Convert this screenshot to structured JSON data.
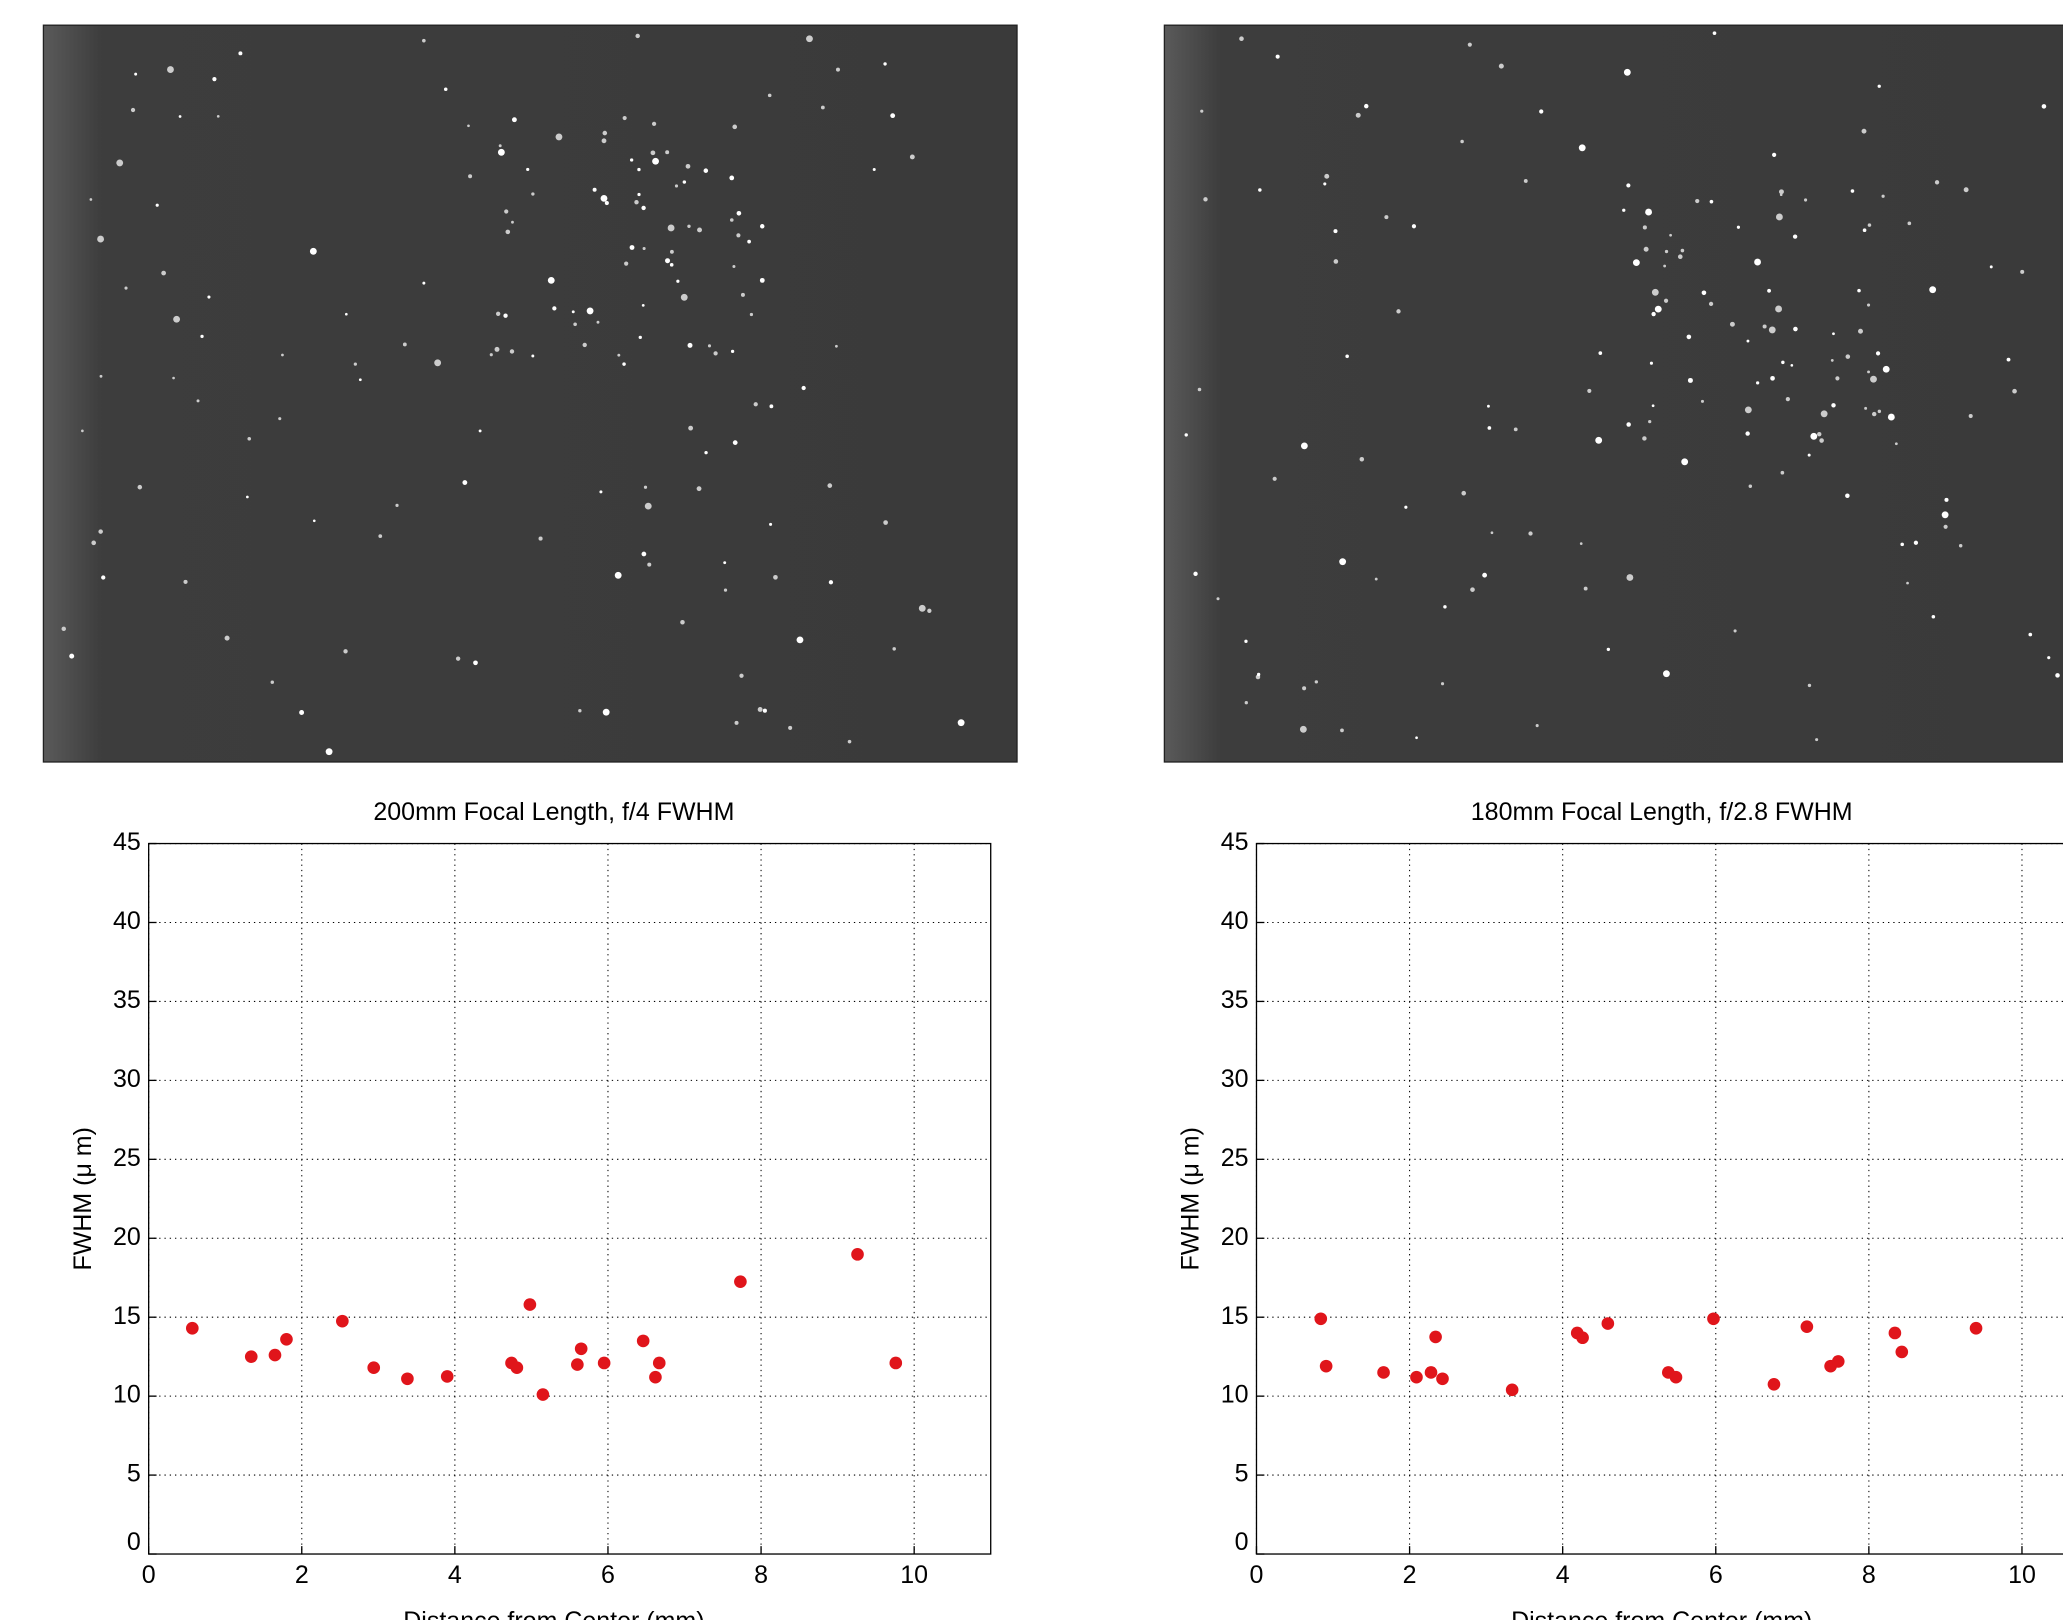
{
  "chart_data": [
    {
      "type": "scatter",
      "title": "200mm Focal Length, f/4 FWHM",
      "x_label": "Distance from Center (mm)",
      "y_label": "FWHM (μ m)",
      "xlim": [
        0,
        11
      ],
      "ylim": [
        0,
        45
      ],
      "xticks": [
        0,
        2,
        4,
        6,
        8,
        10
      ],
      "yticks": [
        0,
        5,
        10,
        15,
        20,
        25,
        30,
        35,
        40,
        45
      ],
      "grid": true,
      "color": "#e0151b",
      "x": [
        0.57,
        1.34,
        1.65,
        1.8,
        2.53,
        2.94,
        3.38,
        3.9,
        4.74,
        4.81,
        4.98,
        5.15,
        5.6,
        5.65,
        5.95,
        6.46,
        6.62,
        6.67,
        7.73,
        9.26,
        9.76
      ],
      "values": [
        14.3,
        12.5,
        12.6,
        13.6,
        14.75,
        11.8,
        11.1,
        11.25,
        12.1,
        11.8,
        15.8,
        10.1,
        12.0,
        13.0,
        12.1,
        13.5,
        11.2,
        12.1,
        17.25,
        18.98,
        12.1
      ]
    },
    {
      "type": "scatter",
      "title": "180mm Focal Length, f/2.8 FWHM",
      "x_label": "Distance from Center (mm)",
      "y_label": "FWHM (μ m)",
      "xlim": [
        0,
        11
      ],
      "ylim": [
        0,
        45
      ],
      "xticks": [
        0,
        2,
        4,
        6,
        8,
        10
      ],
      "yticks": [
        0,
        5,
        10,
        15,
        20,
        25,
        30,
        35,
        40,
        45
      ],
      "grid": true,
      "color": "#e0151b",
      "x": [
        0.84,
        0.91,
        1.66,
        2.09,
        2.28,
        2.34,
        2.43,
        3.34,
        4.19,
        4.26,
        4.59,
        5.38,
        5.48,
        5.97,
        6.76,
        7.19,
        7.5,
        7.6,
        8.34,
        8.43,
        9.4
      ],
      "values": [
        14.9,
        11.9,
        11.5,
        11.2,
        11.5,
        13.75,
        11.1,
        10.4,
        14.0,
        13.7,
        14.6,
        11.5,
        11.2,
        14.9,
        10.75,
        14.4,
        11.9,
        12.2,
        14.0,
        12.8,
        14.3
      ]
    }
  ]
}
